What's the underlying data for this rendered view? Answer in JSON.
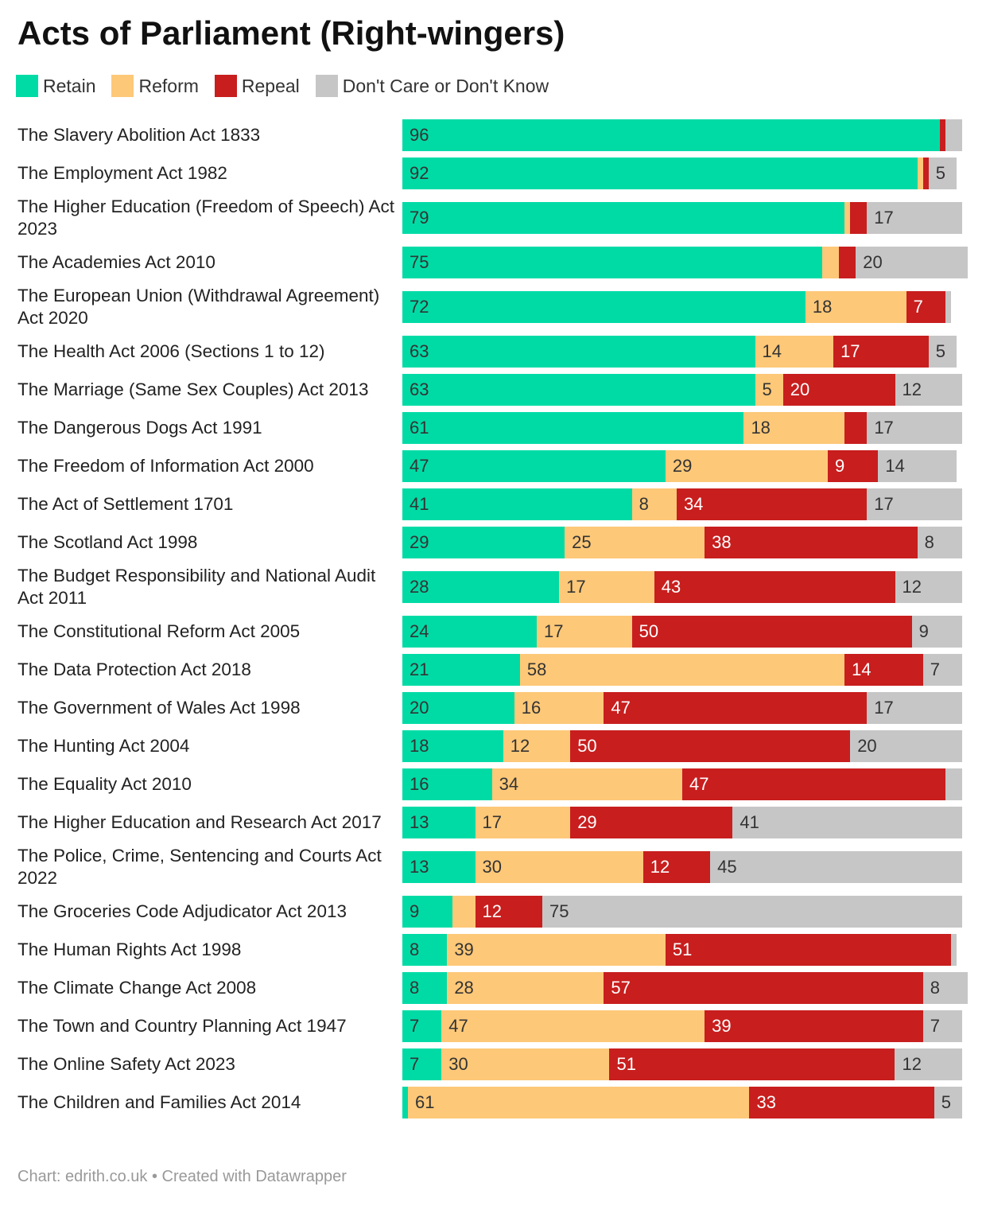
{
  "chart_data": {
    "type": "bar",
    "stacked": true,
    "orientation": "horizontal",
    "title": "Acts of Parliament (Right-wingers)",
    "series_names": [
      "Retain",
      "Reform",
      "Repeal",
      "Don't Care or Don't Know"
    ],
    "colors": [
      "#00dba6",
      "#fdc878",
      "#c81e1e",
      "#c6c6c6"
    ],
    "categories": [
      "The Slavery Abolition Act 1833",
      "The Employment Act 1982",
      "The Higher Education (Freedom of Speech) Act 2023",
      "The Academies Act 2010",
      "The European Union (Withdrawal Agreement) Act 2020",
      "The Health Act 2006 (Sections 1 to 12)",
      "The Marriage (Same Sex Couples) Act 2013",
      "The Dangerous Dogs Act 1991",
      "The Freedom of Information Act 2000",
      "The Act of Settlement 1701",
      "The Scotland Act 1998",
      "The Budget Responsibility and National Audit Act 2011",
      "The Constitutional Reform Act 2005",
      "The Data Protection Act 2018",
      "The Government of Wales Act 1998",
      "The Hunting Act 2004",
      "The Equality Act 2010",
      "The Higher Education and Research Act 2017",
      "The Police, Crime, Sentencing and Courts Act 2022",
      "The Groceries Code Adjudicator Act 2013",
      "The Human Rights Act 1998",
      "The Climate Change Act 2008",
      "The Town and Country Planning Act 1947",
      "The Online Safety Act 2023",
      "The Children and Families Act 2014"
    ],
    "values": [
      [
        96,
        0,
        1,
        3
      ],
      [
        92,
        1,
        1,
        5
      ],
      [
        79,
        1,
        3,
        17
      ],
      [
        75,
        3,
        3,
        20
      ],
      [
        72,
        18,
        7,
        1
      ],
      [
        63,
        14,
        17,
        5
      ],
      [
        63,
        5,
        20,
        12
      ],
      [
        61,
        18,
        4,
        17
      ],
      [
        47,
        29,
        9,
        14
      ],
      [
        41,
        8,
        34,
        17
      ],
      [
        29,
        25,
        38,
        8
      ],
      [
        28,
        17,
        43,
        12
      ],
      [
        24,
        17,
        50,
        9
      ],
      [
        21,
        58,
        14,
        7
      ],
      [
        20,
        16,
        47,
        17
      ],
      [
        18,
        12,
        50,
        20
      ],
      [
        16,
        34,
        47,
        3
      ],
      [
        13,
        17,
        29,
        41
      ],
      [
        13,
        30,
        12,
        45
      ],
      [
        9,
        4,
        12,
        75
      ],
      [
        8,
        39,
        51,
        1
      ],
      [
        8,
        28,
        57,
        8
      ],
      [
        7,
        47,
        39,
        7
      ],
      [
        7,
        30,
        51,
        12
      ],
      [
        1,
        61,
        33,
        5
      ]
    ],
    "label_min": 5,
    "xlim": [
      0,
      100
    ]
  },
  "footer": "Chart: edrith.co.uk • Created with Datawrapper"
}
